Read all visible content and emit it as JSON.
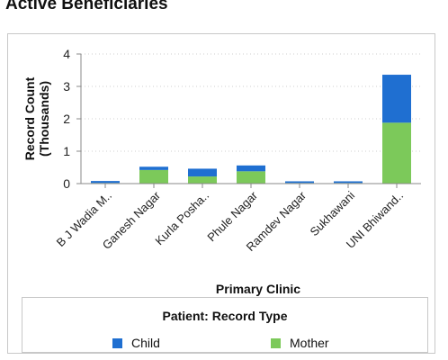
{
  "page": {
    "title": "Active Beneficiaries"
  },
  "colors": {
    "child": "#1f6fd1",
    "mother": "#7cc95a",
    "axis": "#888888",
    "grid": "#cfcfcf"
  },
  "chart_data": {
    "type": "bar",
    "stacked": true,
    "categories": [
      "B J Wadia M..",
      "Ganesh Nagar",
      "Kurla Posha..",
      "Phule Nagar",
      "Ramdev Nagar",
      "Sukhawani",
      "UNI Bhiwand.."
    ],
    "series": [
      {
        "name": "Mother",
        "values": [
          0.02,
          0.42,
          0.22,
          0.38,
          0.02,
          0.02,
          1.88
        ]
      },
      {
        "name": "Child",
        "values": [
          0.06,
          0.1,
          0.24,
          0.18,
          0.05,
          0.05,
          1.48
        ]
      }
    ],
    "xlabel": "Primary Clinic",
    "ylabel": "Record Count\n(Thousands)",
    "ylim": [
      0,
      4
    ],
    "yticks": [
      "0",
      "1",
      "2",
      "3",
      "4"
    ],
    "grid": true,
    "legend": {
      "title": "Patient: Record Type",
      "position": "bottom",
      "items": [
        "Child",
        "Mother"
      ]
    }
  }
}
